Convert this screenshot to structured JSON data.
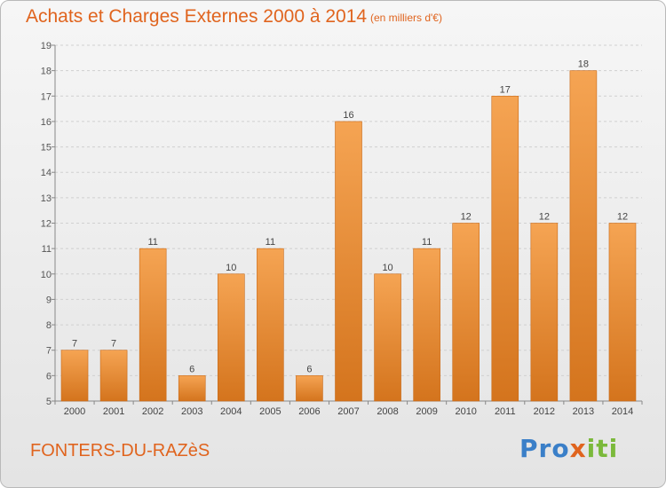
{
  "header": {
    "title": "Achats et Charges Externes 2000 à 2014",
    "unit": "(en milliers d'€)"
  },
  "commune": "FONTERS-DU-RAZèS",
  "logo": {
    "text": "Proxiti",
    "part1": "Pro",
    "part2": "x",
    "part3": "iti"
  },
  "colors": {
    "bar_light": "#f5a453",
    "bar_dark": "#d4741d",
    "accent": "#e0641e"
  },
  "chart_data": {
    "type": "bar",
    "title": "Achats et Charges Externes 2000 à 2014",
    "subtitle": "(en milliers d'€)",
    "xlabel": "",
    "ylabel": "",
    "categories": [
      "2000",
      "2001",
      "2002",
      "2003",
      "2004",
      "2005",
      "2006",
      "2007",
      "2008",
      "2009",
      "2010",
      "2011",
      "2012",
      "2013",
      "2014"
    ],
    "values": [
      7,
      7,
      11,
      6,
      10,
      11,
      6,
      16,
      10,
      11,
      12,
      17,
      12,
      18,
      12
    ],
    "ylim": [
      5,
      19
    ],
    "yticks": [
      5,
      6,
      7,
      8,
      9,
      10,
      11,
      12,
      13,
      14,
      15,
      16,
      17,
      18,
      19
    ],
    "grid": true,
    "legend": "none"
  }
}
